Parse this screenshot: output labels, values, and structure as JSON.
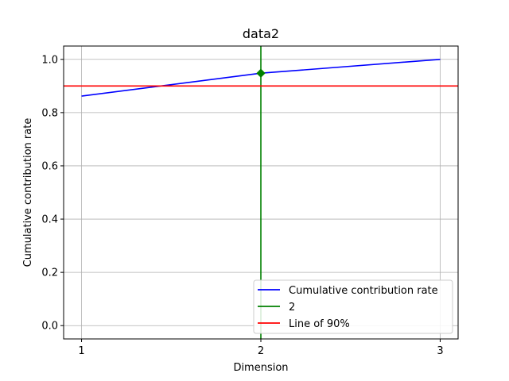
{
  "chart_data": {
    "type": "line",
    "title": "data2",
    "xlabel": "Dimension",
    "ylabel": "Cumulative contribution rate",
    "x": [
      1,
      2,
      3
    ],
    "xticks": [
      "1",
      "2",
      "3"
    ],
    "yticks": [
      "0.0",
      "0.2",
      "0.4",
      "0.6",
      "0.8",
      "1.0"
    ],
    "ytick_values": [
      0.0,
      0.2,
      0.4,
      0.6,
      0.8,
      1.0
    ],
    "xlim": [
      0.9,
      3.1
    ],
    "ylim": [
      -0.05,
      1.05
    ],
    "grid": true,
    "legend_position": "bottom-right",
    "series": [
      {
        "name": "Cumulative contribution rate",
        "type": "line",
        "values": [
          0.862,
          0.948,
          1.0
        ],
        "color": "#0000ff"
      },
      {
        "name": "2",
        "type": "vline",
        "x": 2,
        "color": "#008000"
      },
      {
        "name": "Line of 90%",
        "type": "hline",
        "y": 0.9,
        "color": "#ff0000"
      }
    ],
    "marker": {
      "x": 2,
      "y": 0.948,
      "shape": "diamond",
      "color": "#008000"
    }
  }
}
